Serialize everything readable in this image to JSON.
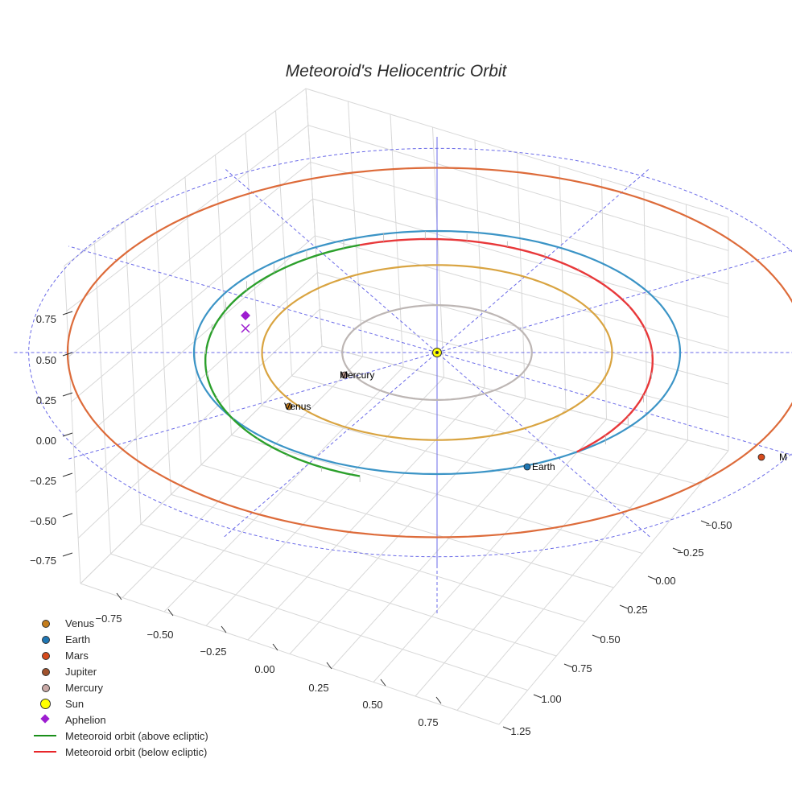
{
  "chart_data": {
    "type": "scatter3d",
    "title": "Meteoroid's Heliocentric Orbit",
    "axes": {
      "x": {
        "ticks": [
          "−0.75",
          "−0.50",
          "−0.25",
          "0.00",
          "0.25",
          "0.50",
          "0.75"
        ]
      },
      "y": {
        "ticks": [
          "−0.50",
          "−0.25",
          "0.00",
          "0.25",
          "0.50",
          "0.75",
          "1.00",
          "1.25"
        ]
      },
      "z": {
        "ticks": [
          "0.75",
          "0.50",
          "0.25",
          "0.00",
          "−0.25",
          "−0.50",
          "−0.75"
        ]
      }
    },
    "planet_orbits_au": [
      {
        "name": "Mercury",
        "radius": 0.39,
        "color": "#bdb6b4"
      },
      {
        "name": "Venus",
        "radius": 0.72,
        "color": "#d9a441"
      },
      {
        "name": "Earth",
        "radius": 1.0,
        "color": "#3b94c6"
      },
      {
        "name": "Mars",
        "radius": 1.52,
        "color": "#dd6b3a"
      }
    ],
    "planets": [
      {
        "name": "Mercury",
        "label": "Mercury",
        "color": "#b08f86"
      },
      {
        "name": "Venus",
        "label": "Venus",
        "color": "#c47d1d"
      },
      {
        "name": "Earth",
        "label": "Earth",
        "color": "#1f77b4"
      },
      {
        "name": "Mars",
        "label": "M",
        "color": "#d64a1c"
      }
    ],
    "sun": {
      "name": "Sun",
      "color": "#ffff00"
    },
    "meteoroid_orbit": {
      "above_ecliptic": {
        "name": "Meteoroid orbit (above ecliptic)",
        "color": "#2ca02c"
      },
      "below_ecliptic": {
        "name": "Meteoroid orbit (below ecliptic)",
        "color": "#e8383a"
      }
    },
    "aphelion": {
      "name": "Aphelion",
      "color": "#9d1dd0"
    },
    "legend": [
      {
        "label": "Venus",
        "symbol": "dot",
        "color": "#c47d1d"
      },
      {
        "label": "Earth",
        "symbol": "dot",
        "color": "#1f77b4"
      },
      {
        "label": "Mars",
        "symbol": "dot",
        "color": "#d64a1c"
      },
      {
        "label": "Jupiter",
        "symbol": "dot",
        "color": "#a0522d"
      },
      {
        "label": "Mercury",
        "symbol": "dot",
        "color": "#c9a9a6"
      },
      {
        "label": "Sun",
        "symbol": "dot-big",
        "color": "#ffff00"
      },
      {
        "label": "Aphelion",
        "symbol": "diamond",
        "color": "#9d1dd0"
      },
      {
        "label": "Meteoroid orbit (above ecliptic)",
        "symbol": "line",
        "color": "#1a8f1a"
      },
      {
        "label": "Meteoroid orbit (below ecliptic)",
        "symbol": "line",
        "color": "#e8262a"
      }
    ]
  }
}
